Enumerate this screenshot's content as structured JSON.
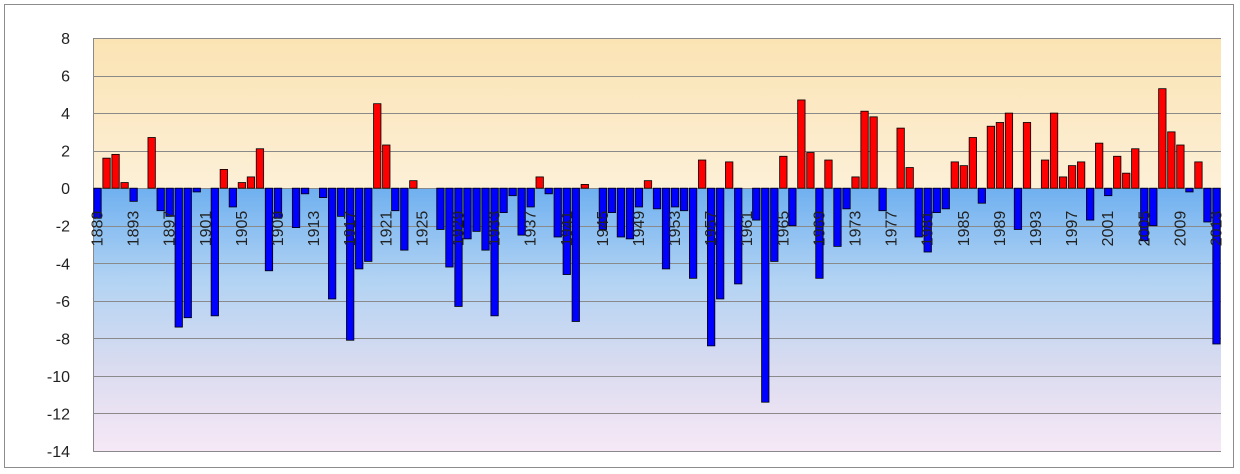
{
  "chart_data": {
    "type": "bar",
    "title": "",
    "xlabel": "",
    "ylabel": "",
    "ylim": [
      -14,
      8
    ],
    "y_ticks": [
      8,
      6,
      4,
      2,
      0,
      -2,
      -4,
      -6,
      -8,
      -10,
      -12,
      -14
    ],
    "x_tick_labels": [
      "1889",
      "1893",
      "1897",
      "1901",
      "1905",
      "1909",
      "1913",
      "1917",
      "1921",
      "1925",
      "1929",
      "1933",
      "1937",
      "1941",
      "1945",
      "1949",
      "1953",
      "1957",
      "1961",
      "1965",
      "1969",
      "1973",
      "1977",
      "1981",
      "1985",
      "1989",
      "1993",
      "1997",
      "2001",
      "2005",
      "2009",
      "2013"
    ],
    "grid": true,
    "legend": "none",
    "positive_color": "#ff0000",
    "negative_color": "#0000ff",
    "years": [
      1889,
      1890,
      1891,
      1892,
      1893,
      1894,
      1895,
      1896,
      1897,
      1898,
      1899,
      1900,
      1901,
      1902,
      1903,
      1904,
      1905,
      1906,
      1907,
      1908,
      1909,
      1910,
      1911,
      1912,
      1913,
      1914,
      1915,
      1916,
      1917,
      1918,
      1919,
      1920,
      1921,
      1922,
      1923,
      1924,
      1925,
      1926,
      1927,
      1928,
      1929,
      1930,
      1931,
      1932,
      1933,
      1934,
      1935,
      1936,
      1937,
      1938,
      1939,
      1940,
      1941,
      1942,
      1943,
      1944,
      1945,
      1946,
      1947,
      1948,
      1949,
      1950,
      1951,
      1952,
      1953,
      1954,
      1955,
      1956,
      1957,
      1958,
      1959,
      1960,
      1961,
      1962,
      1963,
      1964,
      1965,
      1966,
      1967,
      1968,
      1969,
      1970,
      1971,
      1972,
      1973,
      1974,
      1975,
      1976,
      1977,
      1978,
      1979,
      1980,
      1981,
      1982,
      1983,
      1984,
      1985,
      1986,
      1987,
      1988,
      1989,
      1990,
      1991,
      1992,
      1993,
      1994,
      1995,
      1996,
      1997,
      1998,
      1999,
      2000,
      2001,
      2002,
      2003,
      2004,
      2005,
      2006,
      2007,
      2008,
      2009,
      2010,
      2011,
      2012,
      2013
    ],
    "values": [
      -1.6,
      1.6,
      1.8,
      0.3,
      -0.7,
      0,
      2.7,
      -1.2,
      -1.5,
      -7.4,
      -6.9,
      -0.2,
      0,
      -6.8,
      1.0,
      -1.0,
      0.3,
      0.6,
      2.1,
      -4.4,
      -1.6,
      0,
      -2.1,
      -0.3,
      0,
      -0.5,
      -5.9,
      -1.5,
      -8.1,
      -4.3,
      -3.9,
      4.5,
      2.3,
      -1.2,
      -3.3,
      0.4,
      0,
      0,
      -2.2,
      -4.2,
      -6.3,
      -2.7,
      -2.3,
      -3.3,
      -6.8,
      -1.3,
      -0.4,
      -2.5,
      -1.0,
      0.6,
      -0.3,
      -2.6,
      -4.6,
      -7.1,
      0.2,
      0,
      -2.2,
      -1.3,
      -2.6,
      -2.7,
      -1.0,
      0.4,
      -1.1,
      -4.3,
      -1.0,
      -1.2,
      -4.8,
      1.5,
      -8.4,
      -5.9,
      1.4,
      -5.1,
      0,
      -1.7,
      -11.4,
      -3.9,
      1.7,
      -2.0,
      4.7,
      1.9,
      -4.8,
      1.5,
      -3.1,
      -1.1,
      0.6,
      4.1,
      3.8,
      -1.2,
      0,
      3.2,
      1.1,
      -2.6,
      -3.4,
      -1.3,
      -1.1,
      1.4,
      1.2,
      2.7,
      -0.8,
      3.3,
      3.5,
      4.0,
      -2.2,
      3.5,
      0,
      1.5,
      4.0,
      0.6,
      1.2,
      1.4,
      -1.7,
      2.4,
      -0.4,
      1.7,
      0.8,
      2.1,
      -2.8,
      -2.0,
      5.3,
      3.0,
      2.3,
      -0.2,
      1.4,
      -1.8,
      -8.3
    ]
  }
}
